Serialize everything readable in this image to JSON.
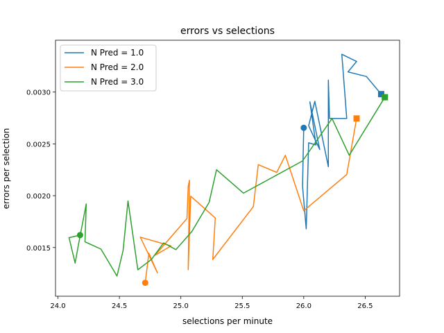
{
  "chart_data": {
    "type": "line",
    "title": "errors vs selections",
    "xlabel": "selections per minute",
    "ylabel": "errors per selection",
    "xlim": [
      23.98,
      26.78
    ],
    "ylim": [
      0.00103,
      0.0035
    ],
    "xticks": [
      24.0,
      24.5,
      25.0,
      25.5,
      26.0,
      26.5
    ],
    "xtick_labels": [
      "24.0",
      "24.5",
      "25.0",
      "25.5",
      "26.0",
      "26.5"
    ],
    "yticks": [
      0.0015,
      0.002,
      0.0025,
      0.003
    ],
    "ytick_labels": [
      "0.0015",
      "0.0020",
      "0.0025",
      "0.0030"
    ],
    "grid": false,
    "legend": "top-left",
    "markers": "start = circle, end = square",
    "series": [
      {
        "name": "N Pred = 1.0",
        "color": "#1f77b4",
        "x": [
          26.0,
          25.99,
          26.02,
          26.04,
          26.1,
          26.05,
          26.13,
          26.04,
          26.09,
          26.2,
          26.2,
          26.21,
          26.21,
          26.35,
          26.31,
          26.43,
          26.36,
          26.51,
          26.63
        ],
        "y": [
          0.002655,
          0.00209,
          0.00168,
          0.00251,
          0.00249,
          0.002905,
          0.002445,
          0.002675,
          0.00291,
          0.00228,
          0.003115,
          0.002745,
          0.002745,
          0.002745,
          0.003365,
          0.003295,
          0.003195,
          0.00315,
          0.00298
        ]
      },
      {
        "name": "N Pred = 2.0",
        "color": "#ff7f0e",
        "x": [
          24.71,
          24.74,
          24.81,
          24.67,
          24.92,
          24.79,
          25.05,
          25.06,
          25.07,
          25.06,
          25.08,
          25.28,
          25.26,
          25.59,
          25.63,
          25.78,
          25.85,
          26.0,
          26.35,
          26.43
        ],
        "y": [
          0.00116,
          0.001445,
          0.001255,
          0.0016,
          0.001515,
          0.001425,
          0.00178,
          0.00209,
          0.00215,
          0.001285,
          0.001995,
          0.001785,
          0.001385,
          0.001895,
          0.0023,
          0.002225,
          0.00239,
          0.001855,
          0.002205,
          0.002745
        ]
      },
      {
        "name": "N Pred = 3.0",
        "color": "#2ca02c",
        "x": [
          24.18,
          24.09,
          24.14,
          24.17,
          24.23,
          24.22,
          24.35,
          24.48,
          24.53,
          24.57,
          24.65,
          24.76,
          24.86,
          24.96,
          25.09,
          25.23,
          25.29,
          25.51,
          25.99,
          26.23,
          26.37,
          26.66
        ],
        "y": [
          0.00162,
          0.001595,
          0.00135,
          0.00155,
          0.00192,
          0.001555,
          0.001485,
          0.001225,
          0.00147,
          0.00195,
          0.001285,
          0.001385,
          0.001545,
          0.00148,
          0.001655,
          0.001935,
          0.00225,
          0.002025,
          0.002335,
          0.002745,
          0.00239,
          0.00295
        ]
      }
    ]
  }
}
